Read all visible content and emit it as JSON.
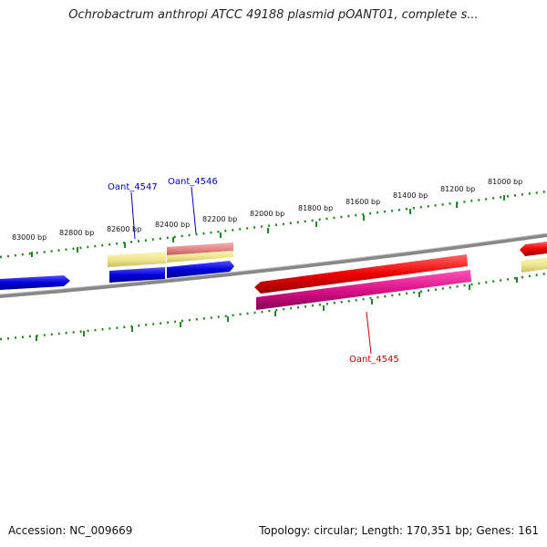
{
  "title": "Ochrobactrum anthropi ATCC 49188 plasmid pOANT01, complete s...",
  "footer": {
    "accession": "Accession: NC_009669",
    "summary": "Topology: circular; Length: 170,351 bp; Genes: 161"
  },
  "scale_labels": [
    "83000 bp",
    "82800 bp",
    "82600 bp",
    "82400 bp",
    "82200 bp",
    "82000 bp",
    "81800 bp",
    "81600 bp",
    "81400 bp",
    "81200 bp",
    "81000 bp"
  ],
  "gene_labels": [
    {
      "text": "Oant_4547",
      "color": "#0000cc"
    },
    {
      "text": "Oant_4546",
      "color": "#0000cc"
    },
    {
      "text": "Oant_4545",
      "color": "#cc0000"
    }
  ],
  "colors": {
    "forward_gene": "#ee0000",
    "reverse_gene": "#0000dd",
    "cog_magenta": "#dd1188",
    "cog_pink": "#e88888",
    "cog_khaki": "#f0e68c",
    "backbone": "#888888",
    "ruler": "#228822"
  }
}
